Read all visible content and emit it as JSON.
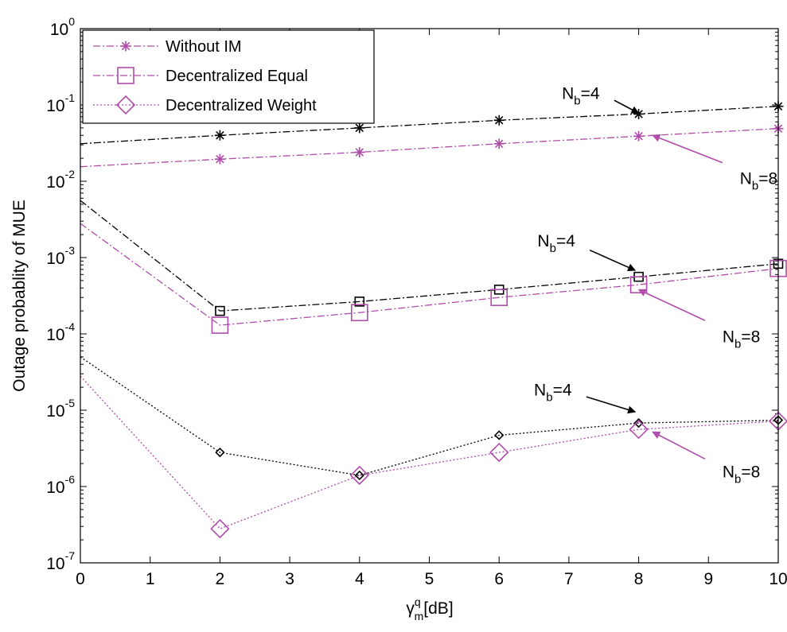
{
  "chart_data": {
    "type": "line",
    "title": "",
    "xlabel": {
      "base": "γ",
      "sup": "q",
      "sub": "m",
      "unit": "[dB]"
    },
    "ylabel": "Outage probablity of MUE",
    "xlim": [
      0,
      10
    ],
    "ylim": [
      1e-07,
      1
    ],
    "yscale": "log",
    "grid": false,
    "x_ticks": [
      "0",
      "1",
      "2",
      "3",
      "4",
      "5",
      "6",
      "7",
      "8",
      "9",
      "10"
    ],
    "y_ticks": [
      {
        "base": "10",
        "exp": "0"
      },
      {
        "base": "10",
        "exp": "-1"
      },
      {
        "base": "10",
        "exp": "-2"
      },
      {
        "base": "10",
        "exp": "-3"
      },
      {
        "base": "10",
        "exp": "-4"
      },
      {
        "base": "10",
        "exp": "-5"
      },
      {
        "base": "10",
        "exp": "-6"
      },
      {
        "base": "10",
        "exp": "-7"
      }
    ],
    "legend": {
      "placement": "top-left",
      "entries": [
        {
          "label": "Without IM",
          "marker": "asterisk",
          "dash": "dashdot"
        },
        {
          "label": "Decentralized Equal",
          "marker": "square",
          "dash": "dashdot"
        },
        {
          "label": "Decentralized Weight",
          "marker": "diamond",
          "dash": "dotted"
        }
      ]
    },
    "colors": {
      "black": "#000000",
      "magenta": "#b04ca9"
    },
    "series": [
      {
        "scheme": "Without IM",
        "nb": "4",
        "color": "black",
        "marker": "asterisk",
        "dash": "dashdot",
        "x": [
          0,
          2,
          4,
          6,
          8,
          10
        ],
        "y": [
          0.031,
          0.04,
          0.05,
          0.063,
          0.076,
          0.096
        ]
      },
      {
        "scheme": "Without IM",
        "nb": "8",
        "color": "magenta",
        "marker": "asterisk",
        "dash": "dashdot",
        "x": [
          0,
          2,
          4,
          6,
          8,
          10
        ],
        "y": [
          0.0155,
          0.0195,
          0.024,
          0.031,
          0.039,
          0.049
        ]
      },
      {
        "scheme": "Decentralized Equal",
        "nb": "4",
        "color": "black",
        "marker": "square",
        "dash": "dashdot",
        "x": [
          0,
          2,
          4,
          6,
          8,
          10
        ],
        "y": [
          0.0056,
          0.0002,
          0.000265,
          0.00038,
          0.00056,
          0.00083
        ]
      },
      {
        "scheme": "Decentralized Equal",
        "nb": "8",
        "color": "magenta",
        "marker": "square",
        "dash": "dashdot",
        "x": [
          0,
          2,
          4,
          6,
          8,
          10
        ],
        "y": [
          0.0028,
          0.00013,
          0.00019,
          0.0003,
          0.00044,
          0.00072
        ]
      },
      {
        "scheme": "Decentralized Weight",
        "nb": "4",
        "color": "black",
        "marker": "diamond",
        "dash": "dotted",
        "x": [
          0,
          2,
          4,
          6,
          8,
          10
        ],
        "y": [
          5e-05,
          2.8e-06,
          1.4e-06,
          4.7e-06,
          6.8e-06,
          7.4e-06
        ]
      },
      {
        "scheme": "Decentralized Weight",
        "nb": "8",
        "color": "magenta",
        "marker": "diamond",
        "dash": "dotted",
        "x": [
          0,
          2,
          4,
          6,
          8,
          10
        ],
        "y": [
          2.8e-05,
          2.8e-07,
          1.4e-06,
          2.8e-06,
          5.6e-06,
          7.2e-06
        ]
      }
    ],
    "annotations": [
      {
        "base": "N",
        "sub": "b",
        "rest": "=4",
        "text_at": [
          6.9,
          0.12
        ],
        "arrow_from": [
          7.65,
          0.115
        ],
        "arrow_to": [
          8.0,
          0.078
        ]
      },
      {
        "base": "N",
        "sub": "b",
        "rest": "=8",
        "text_at": [
          9.45,
          0.0092
        ],
        "arrow_from": [
          9.2,
          0.0175
        ],
        "arrow_to": [
          8.2,
          0.04
        ]
      },
      {
        "base": "N",
        "sub": "b",
        "rest": "=4",
        "text_at": [
          6.55,
          0.0014
        ],
        "arrow_from": [
          7.3,
          0.00125
        ],
        "arrow_to": [
          7.95,
          0.00068
        ]
      },
      {
        "base": "N",
        "sub": "b",
        "rest": "=8",
        "text_at": [
          9.2,
          7.8e-05
        ],
        "arrow_from": [
          8.95,
          0.00015
        ],
        "arrow_to": [
          8.0,
          0.00038
        ]
      },
      {
        "base": "N",
        "sub": "b",
        "rest": "=4",
        "text_at": [
          6.5,
          1.55e-05
        ],
        "arrow_from": [
          7.25,
          1.5e-05
        ],
        "arrow_to": [
          7.95,
          9.5e-06
        ]
      },
      {
        "base": "N",
        "sub": "b",
        "rest": "=8",
        "text_at": [
          9.2,
          1.32e-06
        ],
        "arrow_from": [
          8.95,
          2.3e-06
        ],
        "arrow_to": [
          8.2,
          5.2e-06
        ]
      }
    ]
  }
}
